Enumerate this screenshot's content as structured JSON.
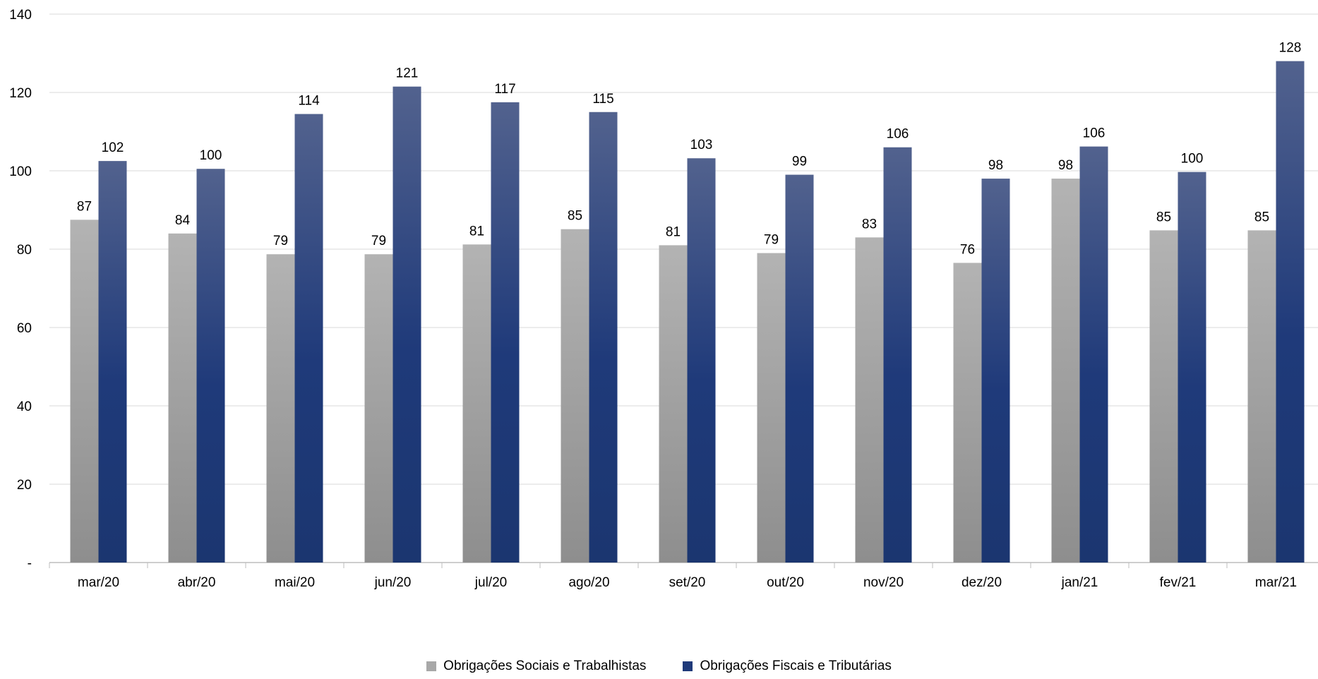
{
  "chart_data": {
    "type": "bar",
    "title": "",
    "xlabel": "",
    "ylabel": "",
    "categories": [
      "mar/20",
      "abr/20",
      "mai/20",
      "jun/20",
      "jul/20",
      "ago/20",
      "set/20",
      "out/20",
      "nov/20",
      "dez/20",
      "jan/21",
      "fev/21",
      "mar/21"
    ],
    "series": [
      {
        "name": "Obrigações Sociais e Trabalhistas",
        "values": [
          87.5,
          84,
          78.7,
          78.7,
          81.2,
          85.1,
          81,
          79,
          83,
          76.5,
          98,
          84.8,
          84.8
        ],
        "labels": [
          "87",
          "84",
          "79",
          "79",
          "81",
          "85",
          "81",
          "79",
          "83",
          "76",
          "98",
          "85",
          "85"
        ],
        "color": "#a8a8a8"
      },
      {
        "name": "Obrigações Fiscais e Tributárias",
        "values": [
          102.5,
          100.5,
          114.5,
          121.5,
          117.5,
          115,
          103.2,
          99,
          106,
          98,
          106.2,
          99.7,
          128
        ],
        "labels": [
          "102",
          "100",
          "114",
          "121",
          "117",
          "115",
          "103",
          "99",
          "106",
          "98",
          "106",
          "100",
          "128"
        ],
        "color": "#1f3a7a"
      }
    ],
    "yticks": [
      "-",
      "20",
      "40",
      "60",
      "80",
      "100",
      "120",
      "140"
    ],
    "ylim": [
      0,
      140
    ],
    "grid": true,
    "legend_position": "bottom"
  }
}
